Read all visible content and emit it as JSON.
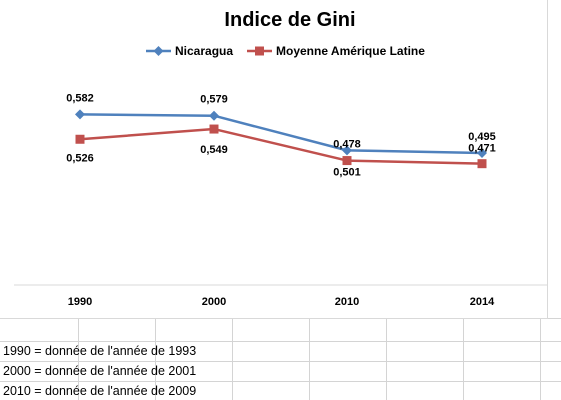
{
  "chart_data": {
    "type": "line",
    "title": "Indice de Gini",
    "categories": [
      "1990",
      "2000",
      "2010",
      "2014"
    ],
    "series": [
      {
        "name": "Nicaragua",
        "values": [
          0.582,
          0.579,
          0.501,
          0.495
        ],
        "labels": [
          "0,582",
          "0,579",
          "0,501",
          "0,495"
        ],
        "color": "#4F81BD",
        "marker": "diamond"
      },
      {
        "name": "Moyenne Amérique Latine",
        "values": [
          0.526,
          0.549,
          0.478,
          0.471
        ],
        "labels": [
          "0,526",
          "0,549",
          "0,478",
          "0,471"
        ],
        "color": "#C0504D",
        "marker": "square"
      }
    ],
    "ylim": [
      0.2,
      0.7
    ],
    "grid": false,
    "legend_position": "top"
  },
  "notes": [
    "1990 = donnée de l'année de 1993",
    "2000 = donnée de l'année de 2001",
    "2010 = donnée de l'année de 2009"
  ]
}
